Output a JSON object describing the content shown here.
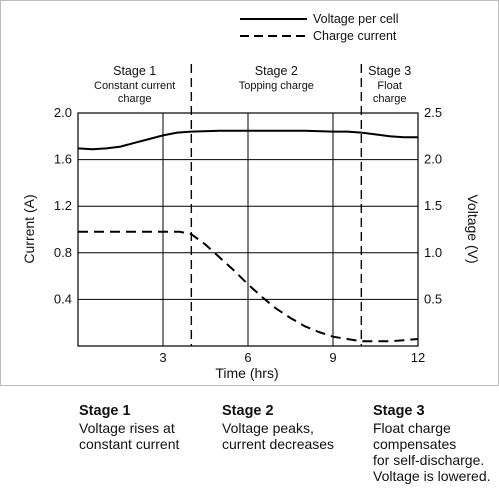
{
  "chart_data": {
    "type": "line",
    "xlabel": "Time (hrs)",
    "ylabel_left": "Current (A)",
    "ylabel_right": "Voltage (V)",
    "xlim": [
      0,
      12
    ],
    "ylim_left": [
      0,
      2.0
    ],
    "ylim_right": [
      0,
      2.5
    ],
    "x_ticks": [
      3,
      6,
      9,
      12
    ],
    "y_ticks_left": [
      0.4,
      0.8,
      1.2,
      1.6,
      2.0
    ],
    "y_ticks_right": [
      0.5,
      1.0,
      1.5,
      2.0,
      2.5
    ],
    "grid": true,
    "legend_placement": "top-right",
    "series": [
      {
        "name": "Voltage per cell",
        "axis": "right",
        "style": "solid",
        "x": [
          0,
          0.5,
          1,
          1.5,
          2,
          2.5,
          3,
          3.5,
          4,
          5,
          6,
          7,
          8,
          9,
          9.5,
          10,
          10.5,
          11,
          11.5,
          12
        ],
        "values": [
          2.12,
          2.11,
          2.12,
          2.14,
          2.18,
          2.22,
          2.26,
          2.29,
          2.3,
          2.31,
          2.31,
          2.31,
          2.31,
          2.3,
          2.3,
          2.29,
          2.27,
          2.25,
          2.24,
          2.24
        ]
      },
      {
        "name": "Charge current",
        "axis": "left",
        "style": "dashed",
        "x": [
          0,
          1,
          2,
          3,
          3.6,
          4,
          4.5,
          5,
          5.5,
          6,
          6.5,
          7,
          7.5,
          8,
          8.5,
          9,
          9.5,
          10,
          10.5,
          11,
          11.5,
          12
        ],
        "values": [
          0.98,
          0.98,
          0.98,
          0.98,
          0.98,
          0.96,
          0.87,
          0.76,
          0.65,
          0.53,
          0.42,
          0.32,
          0.24,
          0.17,
          0.12,
          0.08,
          0.06,
          0.04,
          0.04,
          0.04,
          0.05,
          0.06
        ]
      }
    ],
    "stage_dividers": [
      4,
      10
    ],
    "stages": [
      {
        "title": "Stage 1",
        "sub": [
          "Constant current",
          "charge"
        ]
      },
      {
        "title": "Stage 2",
        "sub": [
          "Topping charge"
        ]
      },
      {
        "title": "Stage 3",
        "sub": [
          "Float",
          "charge"
        ]
      }
    ]
  },
  "captions": [
    {
      "title": "Stage 1",
      "body": "Voltage rises at\nconstant current"
    },
    {
      "title": "Stage 2",
      "body": "Voltage peaks,\ncurrent decreases"
    },
    {
      "title": "Stage 3",
      "body": "Float charge\ncompensates\nfor self-discharge.\nVoltage is lowered."
    }
  ]
}
